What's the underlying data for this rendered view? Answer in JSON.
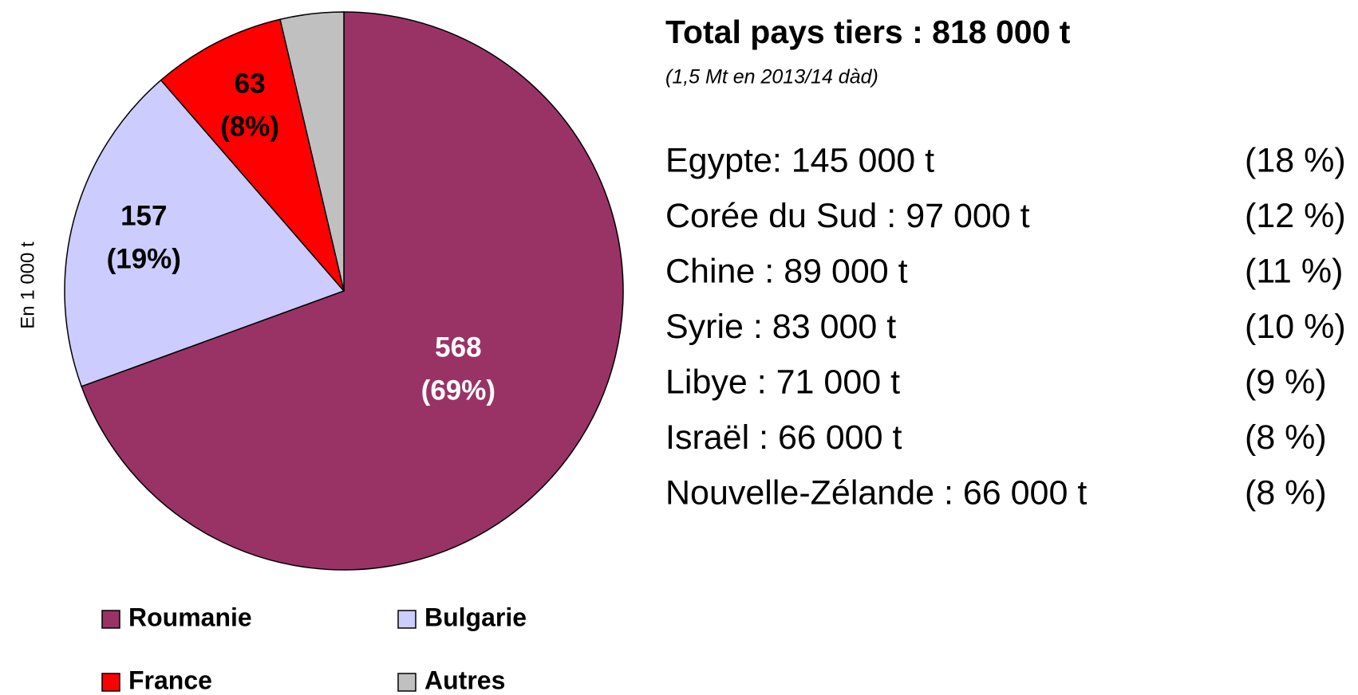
{
  "chart_data": {
    "type": "pie",
    "y_label": "En 1 000 t",
    "categories": [
      "Roumanie",
      "Bulgarie",
      "France",
      "Autres"
    ],
    "values": [
      568,
      157,
      63,
      30
    ],
    "value_labels": [
      "568",
      "157",
      "63",
      null
    ],
    "percent_labels": [
      "(69%)",
      "(19%)",
      "(8%)",
      null
    ],
    "colors": [
      "#993366",
      "#ccccff",
      "#ff0000",
      "#c0c0c0"
    ],
    "label_colors": [
      "#ffffff",
      "#000000",
      "#000000",
      "#000000"
    ],
    "legend": "bottom",
    "side_title": "Total pays tiers : 818 000 t",
    "side_subtitle": "(1,5 Mt en 2013/14 dàd)",
    "details": [
      {
        "label": "Egypte: 145 000 t",
        "share": "(18 %)"
      },
      {
        "label": "Corée du Sud : 97 000 t",
        "share": "(12 %)"
      },
      {
        "label": "Chine : 89 000 t",
        "share": "(11 %)"
      },
      {
        "label": "Syrie : 83 000 t",
        "share": "(10 %)"
      },
      {
        "label": "Libye : 71 000 t",
        "share": "(9 %)"
      },
      {
        "label": "Israël : 66 000 t",
        "share": "(8 %)"
      },
      {
        "label": "Nouvelle-Zélande : 66 000 t",
        "share": "(8 %)"
      }
    ]
  }
}
